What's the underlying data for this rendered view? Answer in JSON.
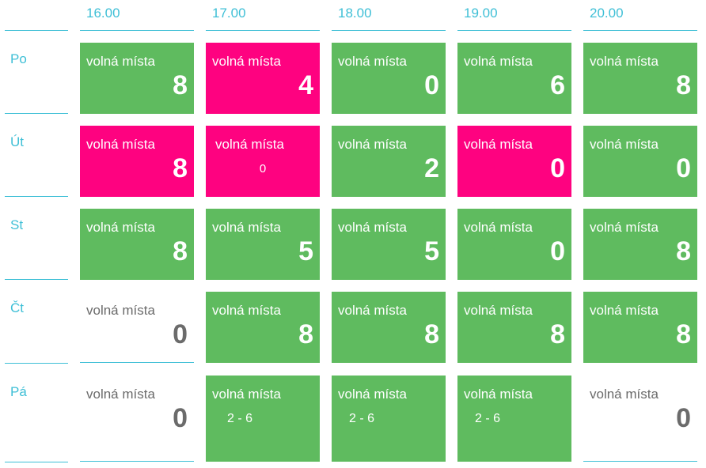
{
  "label": "volná místa",
  "times": [
    "16.00",
    "17.00",
    "18.00",
    "19.00",
    "20.00"
  ],
  "days": [
    "Po",
    "Út",
    "St",
    "Čt",
    "Pá"
  ],
  "colors": {
    "green": "#5fbb5f",
    "pink": "#fe0280",
    "accent": "#3ebfd6",
    "gray": "#6b6b6b"
  },
  "slots": [
    [
      {
        "status": "green",
        "value": "8"
      },
      {
        "status": "pink",
        "value": "4"
      },
      {
        "status": "green",
        "value": "0"
      },
      {
        "status": "green",
        "value": "6"
      },
      {
        "status": "green",
        "value": "8"
      }
    ],
    [
      {
        "status": "pink",
        "value": "8"
      },
      {
        "status": "pink",
        "value": "0",
        "style": "small"
      },
      {
        "status": "green",
        "value": "2"
      },
      {
        "status": "pink",
        "value": "0"
      },
      {
        "status": "green",
        "value": "0"
      }
    ],
    [
      {
        "status": "green",
        "value": "8"
      },
      {
        "status": "green",
        "value": "5"
      },
      {
        "status": "green",
        "value": "5"
      },
      {
        "status": "green",
        "value": "0"
      },
      {
        "status": "green",
        "value": "8"
      }
    ],
    [
      {
        "status": "white",
        "value": "0"
      },
      {
        "status": "green",
        "value": "8"
      },
      {
        "status": "green",
        "value": "8"
      },
      {
        "status": "green",
        "value": "8"
      },
      {
        "status": "green",
        "value": "8"
      }
    ],
    [
      {
        "status": "white",
        "value": "0"
      },
      {
        "status": "green",
        "value": "2 - 6",
        "style": "range"
      },
      {
        "status": "green",
        "value": "2 - 6",
        "style": "range"
      },
      {
        "status": "green",
        "value": "2 - 6",
        "style": "range"
      },
      {
        "status": "white",
        "value": "0"
      }
    ]
  ]
}
